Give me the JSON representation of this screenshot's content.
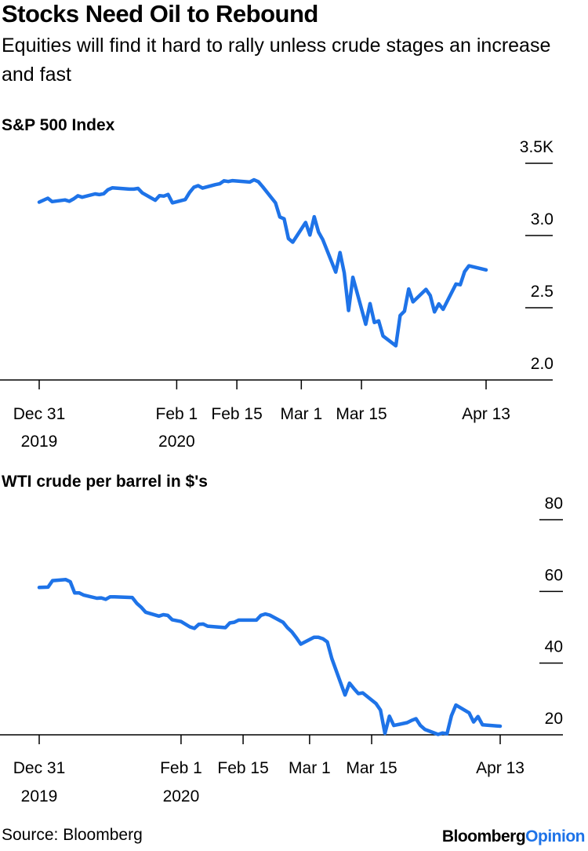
{
  "title": "Stocks Need Oil to Rebound",
  "subtitle": "Equities will find it hard to rally unless crude stages an increase and fast",
  "footer": {
    "source": "Source: Bloomberg",
    "brand_main": "Bloomberg",
    "brand_accent": "Opinion"
  },
  "colors": {
    "line": "#1e73e8",
    "axis": "#000000",
    "brand_accent": "#1e73e8"
  },
  "chart_data": [
    {
      "type": "line",
      "title": "S&P 500 Index",
      "y_ticks": [
        2.0,
        2.5,
        3.0,
        3.5
      ],
      "y_tick_labels": [
        "2.0",
        "2.5",
        "3.0",
        "3.5K"
      ],
      "ylim": [
        2.0,
        3.5
      ],
      "x_start": "2019-12-31",
      "x_end": "2020-04-13",
      "x_ticks": [
        {
          "date": "2019-12-31",
          "line1": "Dec 31",
          "line2": "2019"
        },
        {
          "date": "2020-02-01",
          "line1": "Feb 1",
          "line2": "2020"
        },
        {
          "date": "2020-02-15",
          "line1": "Feb 15",
          "line2": ""
        },
        {
          "date": "2020-03-01",
          "line1": "Mar 1",
          "line2": ""
        },
        {
          "date": "2020-03-15",
          "line1": "Mar 15",
          "line2": ""
        },
        {
          "date": "2020-04-13",
          "line1": "Apr 13",
          "line2": ""
        }
      ],
      "series": [
        {
          "points": [
            [
              "2019-12-31",
              3.231
            ],
            [
              "2020-01-02",
              3.258
            ],
            [
              "2020-01-03",
              3.235
            ],
            [
              "2020-01-06",
              3.246
            ],
            [
              "2020-01-07",
              3.237
            ],
            [
              "2020-01-08",
              3.253
            ],
            [
              "2020-01-09",
              3.275
            ],
            [
              "2020-01-10",
              3.265
            ],
            [
              "2020-01-13",
              3.288
            ],
            [
              "2020-01-14",
              3.283
            ],
            [
              "2020-01-15",
              3.289
            ],
            [
              "2020-01-16",
              3.317
            ],
            [
              "2020-01-17",
              3.33
            ],
            [
              "2020-01-21",
              3.321
            ],
            [
              "2020-01-22",
              3.321
            ],
            [
              "2020-01-23",
              3.326
            ],
            [
              "2020-01-24",
              3.295
            ],
            [
              "2020-01-27",
              3.244
            ],
            [
              "2020-01-28",
              3.276
            ],
            [
              "2020-01-29",
              3.273
            ],
            [
              "2020-01-30",
              3.284
            ],
            [
              "2020-01-31",
              3.226
            ],
            [
              "2020-02-03",
              3.249
            ],
            [
              "2020-02-04",
              3.298
            ],
            [
              "2020-02-05",
              3.334
            ],
            [
              "2020-02-06",
              3.345
            ],
            [
              "2020-02-07",
              3.328
            ],
            [
              "2020-02-10",
              3.352
            ],
            [
              "2020-02-11",
              3.358
            ],
            [
              "2020-02-12",
              3.379
            ],
            [
              "2020-02-13",
              3.374
            ],
            [
              "2020-02-14",
              3.38
            ],
            [
              "2020-02-18",
              3.37
            ],
            [
              "2020-02-19",
              3.386
            ],
            [
              "2020-02-20",
              3.373
            ],
            [
              "2020-02-21",
              3.338
            ],
            [
              "2020-02-24",
              3.226
            ],
            [
              "2020-02-25",
              3.128
            ],
            [
              "2020-02-26",
              3.116
            ],
            [
              "2020-02-27",
              2.979
            ],
            [
              "2020-02-28",
              2.954
            ],
            [
              "2020-03-02",
              3.09
            ],
            [
              "2020-03-03",
              3.003
            ],
            [
              "2020-03-04",
              3.13
            ],
            [
              "2020-03-05",
              3.024
            ],
            [
              "2020-03-06",
              2.972
            ],
            [
              "2020-03-09",
              2.747
            ],
            [
              "2020-03-10",
              2.882
            ],
            [
              "2020-03-11",
              2.741
            ],
            [
              "2020-03-12",
              2.481
            ],
            [
              "2020-03-13",
              2.711
            ],
            [
              "2020-03-16",
              2.386
            ],
            [
              "2020-03-17",
              2.529
            ],
            [
              "2020-03-18",
              2.398
            ],
            [
              "2020-03-19",
              2.409
            ],
            [
              "2020-03-20",
              2.305
            ],
            [
              "2020-03-23",
              2.237
            ],
            [
              "2020-03-24",
              2.447
            ],
            [
              "2020-03-25",
              2.476
            ],
            [
              "2020-03-26",
              2.63
            ],
            [
              "2020-03-27",
              2.541
            ],
            [
              "2020-03-30",
              2.627
            ],
            [
              "2020-03-31",
              2.585
            ],
            [
              "2020-04-01",
              2.471
            ],
            [
              "2020-04-02",
              2.527
            ],
            [
              "2020-04-03",
              2.489
            ],
            [
              "2020-04-06",
              2.664
            ],
            [
              "2020-04-07",
              2.659
            ],
            [
              "2020-04-08",
              2.75
            ],
            [
              "2020-04-09",
              2.79
            ],
            [
              "2020-04-13",
              2.762
            ]
          ]
        }
      ]
    },
    {
      "type": "line",
      "title": "WTI crude per barrel in $'s",
      "y_ticks": [
        20,
        40,
        60,
        80
      ],
      "y_tick_labels": [
        "20",
        "40",
        "60",
        "80"
      ],
      "ylim": [
        20,
        80
      ],
      "x_start": "2019-12-31",
      "x_end": "2020-04-13",
      "x_ticks": [
        {
          "date": "2019-12-31",
          "line1": "Dec 31",
          "line2": "2019"
        },
        {
          "date": "2020-02-01",
          "line1": "Feb 1",
          "line2": "2020"
        },
        {
          "date": "2020-02-15",
          "line1": "Feb 15",
          "line2": ""
        },
        {
          "date": "2020-03-01",
          "line1": "Mar 1",
          "line2": ""
        },
        {
          "date": "2020-03-15",
          "line1": "Mar 15",
          "line2": ""
        },
        {
          "date": "2020-04-13",
          "line1": "Apr 13",
          "line2": ""
        }
      ],
      "series": [
        {
          "points": [
            [
              "2019-12-31",
              61.1
            ],
            [
              "2020-01-02",
              61.2
            ],
            [
              "2020-01-03",
              63.0
            ],
            [
              "2020-01-06",
              63.3
            ],
            [
              "2020-01-07",
              62.7
            ],
            [
              "2020-01-08",
              59.6
            ],
            [
              "2020-01-09",
              59.6
            ],
            [
              "2020-01-10",
              59.0
            ],
            [
              "2020-01-13",
              58.1
            ],
            [
              "2020-01-14",
              58.2
            ],
            [
              "2020-01-15",
              57.8
            ],
            [
              "2020-01-16",
              58.5
            ],
            [
              "2020-01-17",
              58.5
            ],
            [
              "2020-01-21",
              58.3
            ],
            [
              "2020-01-22",
              56.7
            ],
            [
              "2020-01-23",
              55.6
            ],
            [
              "2020-01-24",
              54.2
            ],
            [
              "2020-01-27",
              53.1
            ],
            [
              "2020-01-28",
              53.5
            ],
            [
              "2020-01-29",
              53.3
            ],
            [
              "2020-01-30",
              52.1
            ],
            [
              "2020-02-01",
              51.6
            ],
            [
              "2020-02-03",
              50.1
            ],
            [
              "2020-02-04",
              49.7
            ],
            [
              "2020-02-05",
              50.8
            ],
            [
              "2020-02-06",
              50.9
            ],
            [
              "2020-02-07",
              50.3
            ],
            [
              "2020-02-10",
              50.0
            ],
            [
              "2020-02-11",
              49.9
            ],
            [
              "2020-02-12",
              51.2
            ],
            [
              "2020-02-13",
              51.4
            ],
            [
              "2020-02-14",
              52.0
            ],
            [
              "2020-02-18",
              52.0
            ],
            [
              "2020-02-19",
              53.3
            ],
            [
              "2020-02-20",
              53.7
            ],
            [
              "2020-02-21",
              53.4
            ],
            [
              "2020-02-24",
              51.4
            ],
            [
              "2020-02-25",
              49.9
            ],
            [
              "2020-02-26",
              48.7
            ],
            [
              "2020-02-27",
              47.1
            ],
            [
              "2020-02-28",
              45.3
            ],
            [
              "2020-03-02",
              47.2
            ],
            [
              "2020-03-03",
              47.2
            ],
            [
              "2020-03-04",
              46.8
            ],
            [
              "2020-03-05",
              45.9
            ],
            [
              "2020-03-06",
              41.3
            ],
            [
              "2020-03-09",
              31.1
            ],
            [
              "2020-03-10",
              34.4
            ],
            [
              "2020-03-11",
              32.9
            ],
            [
              "2020-03-12",
              31.5
            ],
            [
              "2020-03-13",
              31.7
            ],
            [
              "2020-03-16",
              28.7
            ],
            [
              "2020-03-17",
              26.9
            ],
            [
              "2020-03-18",
              20.4
            ],
            [
              "2020-03-19",
              25.2
            ],
            [
              "2020-03-20",
              22.6
            ],
            [
              "2020-03-23",
              23.4
            ],
            [
              "2020-03-24",
              24.0
            ],
            [
              "2020-03-25",
              24.5
            ],
            [
              "2020-03-26",
              22.6
            ],
            [
              "2020-03-27",
              21.5
            ],
            [
              "2020-03-30",
              20.1
            ],
            [
              "2020-03-31",
              20.5
            ],
            [
              "2020-04-01",
              20.3
            ],
            [
              "2020-04-02",
              25.3
            ],
            [
              "2020-04-03",
              28.3
            ],
            [
              "2020-04-06",
              26.1
            ],
            [
              "2020-04-07",
              23.6
            ],
            [
              "2020-04-08",
              25.1
            ],
            [
              "2020-04-09",
              22.8
            ],
            [
              "2020-04-13",
              22.4
            ]
          ]
        }
      ]
    }
  ]
}
